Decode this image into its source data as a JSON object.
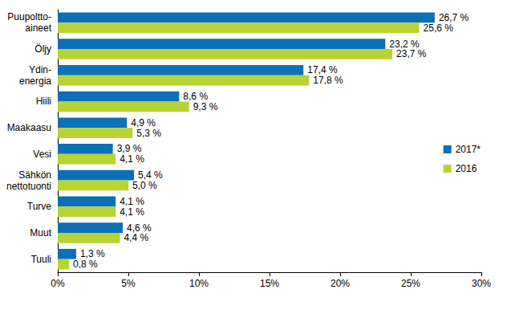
{
  "chart_data": {
    "type": "bar",
    "orientation": "horizontal",
    "categories": [
      "Puupoltto-\naineet",
      "Öljy",
      "Ydin-\nenergia",
      "Hiili",
      "Maakaasu",
      "Vesi",
      "Sähkön\nnettotuonti",
      "Turve",
      "Muut",
      "Tuuli"
    ],
    "series": [
      {
        "name": "2017*",
        "color": "#0c70b6",
        "values": [
          26.7,
          23.2,
          17.4,
          8.6,
          4.9,
          3.9,
          5.4,
          4.1,
          4.6,
          1.3
        ],
        "value_labels": [
          "26,7 %",
          "23,2 %",
          "17,4 %",
          "8,6 %",
          "4,9 %",
          "3,9 %",
          "5,4 %",
          "4,1 %",
          "4,6 %",
          "1,3 %"
        ]
      },
      {
        "name": "2016",
        "color": "#b7d334",
        "values": [
          25.6,
          23.7,
          17.8,
          9.3,
          5.3,
          4.1,
          5.0,
          4.1,
          4.4,
          0.8
        ],
        "value_labels": [
          "25,6 %",
          "23,7 %",
          "17,8 %",
          "9,3 %",
          "5,3 %",
          "4,1 %",
          "5,0 %",
          "4,1 %",
          "4,4 %",
          "0,8 %"
        ]
      }
    ],
    "xlim": [
      0,
      30
    ],
    "xticks": [
      {
        "value": 0,
        "label": "0%"
      },
      {
        "value": 5,
        "label": "5%"
      },
      {
        "value": 10,
        "label": "10%"
      },
      {
        "value": 15,
        "label": "15%"
      },
      {
        "value": 20,
        "label": "20%"
      },
      {
        "value": 25,
        "label": "25%"
      },
      {
        "value": 30,
        "label": "30%"
      }
    ],
    "grid": false,
    "legend": "right",
    "data_labels": true
  }
}
